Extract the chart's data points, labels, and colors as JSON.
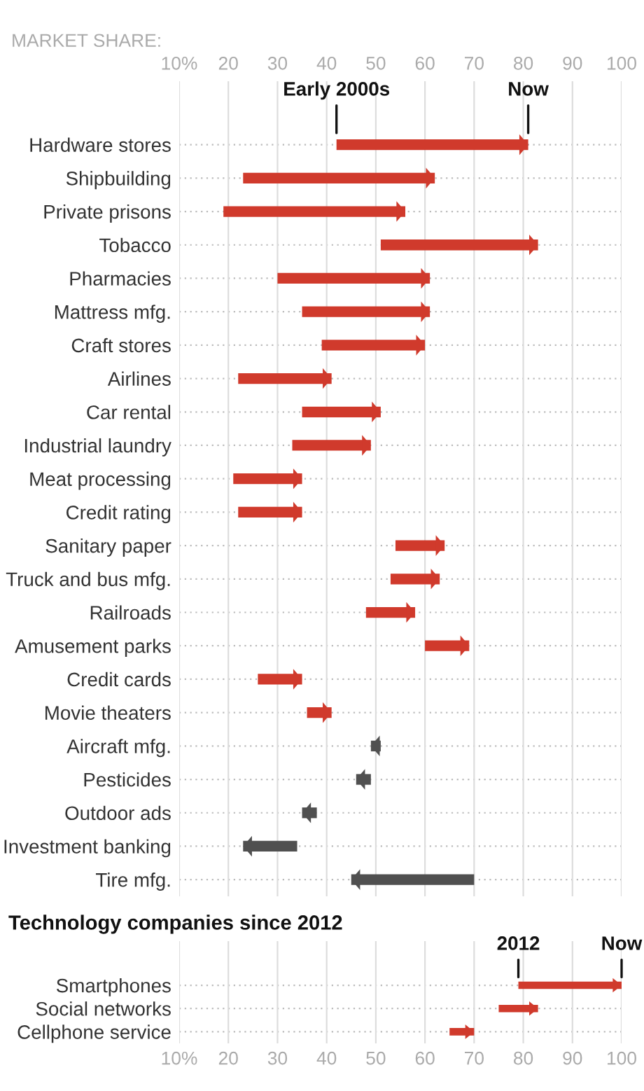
{
  "chart_data": [
    {
      "type": "bar",
      "orientation": "horizontal",
      "xlabel": "MARKET SHARE:",
      "categories": [
        "Hardware stores",
        "Shipbuilding",
        "Private prisons",
        "Tobacco",
        "Pharmacies",
        "Mattress mfg.",
        "Craft stores",
        "Airlines",
        "Car rental",
        "Industrial laundry",
        "Meat processing",
        "Credit rating",
        "Sanitary paper",
        "Truck and bus mfg.",
        "Railroads",
        "Amusement parks",
        "Credit cards",
        "Movie theaters",
        "Aircraft mfg.",
        "Pesticides",
        "Outdoor ads",
        "Investment banking",
        "Tire mfg."
      ],
      "base": [
        42,
        23,
        19,
        51,
        30,
        35,
        39,
        22,
        35,
        33,
        21,
        22,
        54,
        53,
        48,
        60,
        26,
        36,
        51,
        49,
        38,
        34,
        70
      ],
      "values": [
        39,
        39,
        37,
        32,
        31,
        26,
        21,
        19,
        16,
        16,
        14,
        13,
        10,
        10,
        10,
        9,
        9,
        5,
        -2,
        -3,
        -3,
        -11,
        -25
      ],
      "colors": [
        "#d03a2c",
        "#d03a2c",
        "#d03a2c",
        "#d03a2c",
        "#d03a2c",
        "#d03a2c",
        "#d03a2c",
        "#d03a2c",
        "#d03a2c",
        "#d03a2c",
        "#d03a2c",
        "#d03a2c",
        "#d03a2c",
        "#d03a2c",
        "#d03a2c",
        "#d03a2c",
        "#d03a2c",
        "#d03a2c",
        "#505050",
        "#505050",
        "#505050",
        "#505050",
        "#505050"
      ],
      "xlim": [
        10,
        100
      ],
      "xticks": [
        {
          "value": 10,
          "label": "10%"
        },
        20,
        30,
        40,
        50,
        60,
        70,
        80,
        90,
        100
      ],
      "grid": true,
      "annotations": [
        {
          "text": "Early 2000s",
          "x": 42,
          "y": "Hardware stores"
        },
        {
          "text": "Now",
          "x": 81,
          "y": "Hardware stores"
        }
      ]
    },
    {
      "type": "bar",
      "orientation": "horizontal",
      "title": "Technology companies since 2012",
      "categories": [
        "Smartphones",
        "Social networks",
        "Cellphone service"
      ],
      "base": [
        79,
        75,
        65
      ],
      "values": [
        21,
        8,
        5
      ],
      "colors": [
        "#d03a2c",
        "#d03a2c",
        "#d03a2c"
      ],
      "xlim": [
        10,
        100
      ],
      "xticks": [
        {
          "value": 10,
          "label": "10%"
        },
        20,
        30,
        40,
        50,
        60,
        70,
        80,
        90,
        100
      ],
      "grid": true,
      "annotations": [
        {
          "text": "2012",
          "x": 79,
          "y": "Smartphones"
        },
        {
          "text": "Now",
          "x": 100,
          "y": "Smartphones"
        }
      ]
    }
  ]
}
